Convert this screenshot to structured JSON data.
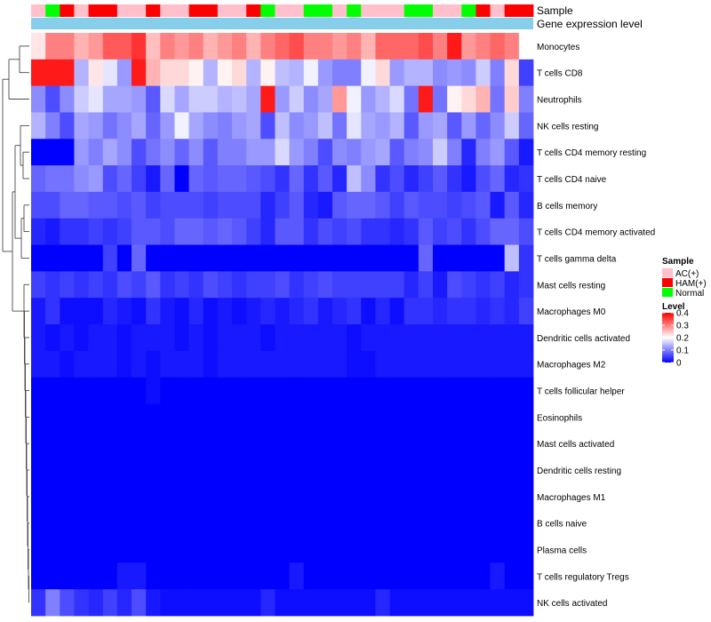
{
  "chart_data": {
    "type": "heatmap",
    "annotation_rows": [
      "Sample",
      "Gene expression level"
    ],
    "sample_annotation": [
      "AC(+)",
      "Normal",
      "HAM(+)",
      "AC(+)",
      "HAM(+)",
      "HAM(+)",
      "AC(+)",
      "AC(+)",
      "HAM(+)",
      "AC(+)",
      "AC(+)",
      "HAM(+)",
      "HAM(+)",
      "AC(+)",
      "AC(+)",
      "HAM(+)",
      "Normal",
      "AC(+)",
      "AC(+)",
      "Normal",
      "Normal",
      "AC(+)",
      "Normal",
      "AC(+)",
      "AC(+)",
      "AC(+)",
      "Normal",
      "Normal",
      "AC(+)",
      "AC(+)",
      "Normal",
      "HAM(+)",
      "AC(+)",
      "HAM(+)",
      "HAM(+)"
    ],
    "expression_annotation_color": "#87ceeb",
    "rows": [
      "Monocytes",
      "T cells CD8",
      "Neutrophils",
      "NK cells resting",
      "T cells CD4 memory resting",
      "T cells CD4 naive",
      "B cells memory",
      "T cells CD4 memory activated",
      "T cells gamma delta",
      "Mast cells resting",
      "Macrophages M0",
      "Dendritic cells activated",
      "Macrophages M2",
      "T cells follicular helper",
      "Eosinophils",
      "Mast cells activated",
      "Dendritic cells resting",
      "Macrophages M1",
      "B cells naive",
      "Plasma cells",
      "T cells regulatory  Tregs",
      "NK cells activated"
    ],
    "values": [
      [
        0.22,
        0.3,
        0.3,
        0.26,
        0.28,
        0.33,
        0.33,
        0.36,
        0.25,
        0.3,
        0.28,
        0.3,
        0.26,
        0.28,
        0.3,
        0.26,
        0.3,
        0.32,
        0.34,
        0.3,
        0.3,
        0.28,
        0.3,
        0.26,
        0.32,
        0.32,
        0.32,
        0.34,
        0.3,
        0.38,
        0.28,
        0.3,
        0.32,
        0.3,
        0.2
      ],
      [
        0.38,
        0.38,
        0.38,
        0.14,
        0.22,
        0.18,
        0.12,
        0.38,
        0.26,
        0.23,
        0.23,
        0.21,
        0.14,
        0.21,
        0.23,
        0.14,
        0.21,
        0.15,
        0.14,
        0.19,
        0.12,
        0.1,
        0.1,
        0.19,
        0.23,
        0.12,
        0.14,
        0.14,
        0.11,
        0.12,
        0.11,
        0.16,
        0.1,
        0.23,
        0.05
      ],
      [
        0.11,
        0.06,
        0.11,
        0.16,
        0.18,
        0.13,
        0.13,
        0.12,
        0.07,
        0.17,
        0.13,
        0.16,
        0.16,
        0.14,
        0.15,
        0.13,
        0.38,
        0.12,
        0.16,
        0.11,
        0.13,
        0.28,
        0.19,
        0.12,
        0.14,
        0.17,
        0.09,
        0.38,
        0.09,
        0.21,
        0.23,
        0.26,
        0.09,
        0.24,
        0.1
      ],
      [
        0.14,
        0.1,
        0.06,
        0.13,
        0.12,
        0.09,
        0.11,
        0.13,
        0.08,
        0.12,
        0.19,
        0.13,
        0.11,
        0.1,
        0.12,
        0.13,
        0.06,
        0.15,
        0.11,
        0.12,
        0.15,
        0.09,
        0.18,
        0.13,
        0.12,
        0.14,
        0.07,
        0.12,
        0.13,
        0.07,
        0.12,
        0.08,
        0.11,
        0.16,
        0.08
      ],
      [
        0.0,
        0.0,
        0.0,
        0.12,
        0.1,
        0.13,
        0.11,
        0.06,
        0.09,
        0.11,
        0.08,
        0.11,
        0.07,
        0.1,
        0.1,
        0.12,
        0.12,
        0.17,
        0.12,
        0.1,
        0.06,
        0.11,
        0.1,
        0.12,
        0.13,
        0.07,
        0.1,
        0.11,
        0.16,
        0.1,
        0.03,
        0.1,
        0.12,
        0.07,
        0.02
      ],
      [
        0.08,
        0.09,
        0.09,
        0.11,
        0.12,
        0.06,
        0.08,
        0.05,
        0.02,
        0.08,
        0.0,
        0.08,
        0.07,
        0.08,
        0.08,
        0.07,
        0.06,
        0.04,
        0.08,
        0.04,
        0.07,
        0.03,
        0.15,
        0.11,
        0.04,
        0.06,
        0.03,
        0.05,
        0.07,
        0.04,
        0.02,
        0.06,
        0.08,
        0.03,
        0.04
      ],
      [
        0.06,
        0.06,
        0.08,
        0.08,
        0.07,
        0.07,
        0.06,
        0.07,
        0.05,
        0.06,
        0.06,
        0.06,
        0.05,
        0.06,
        0.06,
        0.06,
        0.03,
        0.05,
        0.07,
        0.03,
        0.02,
        0.07,
        0.08,
        0.08,
        0.07,
        0.05,
        0.07,
        0.06,
        0.06,
        0.05,
        0.06,
        0.07,
        0.02,
        0.07,
        0.03
      ],
      [
        0.03,
        0.02,
        0.04,
        0.04,
        0.05,
        0.04,
        0.05,
        0.07,
        0.07,
        0.06,
        0.08,
        0.08,
        0.07,
        0.08,
        0.07,
        0.05,
        0.03,
        0.07,
        0.07,
        0.04,
        0.06,
        0.05,
        0.06,
        0.04,
        0.04,
        0.03,
        0.04,
        0.07,
        0.05,
        0.06,
        0.04,
        0.06,
        0.08,
        0.08,
        0.06
      ],
      [
        0.0,
        0.0,
        0.0,
        0.0,
        0.0,
        0.05,
        0.0,
        0.08,
        0.0,
        0.0,
        0.0,
        0.0,
        0.0,
        0.0,
        0.0,
        0.0,
        0.0,
        0.0,
        0.0,
        0.0,
        0.0,
        0.0,
        0.0,
        0.0,
        0.0,
        0.0,
        0.0,
        0.08,
        0.0,
        0.0,
        0.0,
        0.0,
        0.0,
        0.15,
        0.04
      ],
      [
        0.05,
        0.04,
        0.05,
        0.04,
        0.05,
        0.04,
        0.06,
        0.05,
        0.07,
        0.04,
        0.05,
        0.04,
        0.06,
        0.05,
        0.04,
        0.05,
        0.05,
        0.06,
        0.04,
        0.05,
        0.06,
        0.05,
        0.05,
        0.05,
        0.05,
        0.05,
        0.03,
        0.05,
        0.02,
        0.06,
        0.05,
        0.04,
        0.05,
        0.03,
        0.04
      ],
      [
        0.02,
        0.04,
        0.01,
        0.01,
        0.01,
        0.03,
        0.02,
        0.01,
        0.04,
        0.02,
        0.01,
        0.03,
        0.01,
        0.02,
        0.01,
        0.02,
        0.03,
        0.02,
        0.03,
        0.04,
        0.02,
        0.03,
        0.04,
        0.01,
        0.03,
        0.01,
        0.04,
        0.04,
        0.03,
        0.04,
        0.04,
        0.03,
        0.04,
        0.03,
        0.05
      ],
      [
        0.02,
        0.01,
        0.02,
        0.01,
        0.02,
        0.02,
        0.01,
        0.02,
        0.02,
        0.02,
        0.01,
        0.02,
        0.01,
        0.02,
        0.02,
        0.02,
        0.01,
        0.02,
        0.02,
        0.02,
        0.02,
        0.02,
        0.01,
        0.02,
        0.02,
        0.02,
        0.02,
        0.02,
        0.02,
        0.02,
        0.02,
        0.02,
        0.02,
        0.02,
        0.02
      ],
      [
        0.02,
        0.02,
        0.01,
        0.02,
        0.02,
        0.02,
        0.01,
        0.02,
        0.01,
        0.02,
        0.02,
        0.02,
        0.01,
        0.02,
        0.02,
        0.02,
        0.02,
        0.02,
        0.02,
        0.02,
        0.02,
        0.02,
        0.01,
        0.01,
        0.02,
        0.02,
        0.02,
        0.02,
        0.02,
        0.02,
        0.02,
        0.02,
        0.02,
        0.02,
        0.02
      ],
      [
        0.0,
        0.0,
        0.0,
        0.0,
        0.0,
        0.0,
        0.0,
        0.0,
        0.01,
        0.0,
        0.0,
        0.0,
        0.0,
        0.0,
        0.0,
        0.0,
        0.0,
        0.0,
        0.0,
        0.0,
        0.0,
        0.0,
        0.0,
        0.0,
        0.0,
        0.0,
        0.0,
        0.0,
        0.0,
        0.0,
        0.0,
        0.0,
        0.0,
        0.0,
        0.0
      ],
      [
        0.0,
        0.0,
        0.0,
        0.0,
        0.0,
        0.0,
        0.0,
        0.0,
        0.0,
        0.0,
        0.0,
        0.0,
        0.0,
        0.0,
        0.0,
        0.0,
        0.0,
        0.0,
        0.0,
        0.0,
        0.0,
        0.0,
        0.0,
        0.0,
        0.0,
        0.0,
        0.0,
        0.0,
        0.0,
        0.0,
        0.0,
        0.0,
        0.0,
        0.0,
        0.0
      ],
      [
        0.0,
        0.0,
        0.0,
        0.0,
        0.0,
        0.0,
        0.0,
        0.0,
        0.0,
        0.0,
        0.0,
        0.0,
        0.0,
        0.0,
        0.0,
        0.0,
        0.0,
        0.0,
        0.0,
        0.0,
        0.0,
        0.0,
        0.0,
        0.0,
        0.0,
        0.0,
        0.0,
        0.0,
        0.0,
        0.0,
        0.0,
        0.0,
        0.0,
        0.0,
        0.0
      ],
      [
        0.0,
        0.0,
        0.0,
        0.0,
        0.0,
        0.0,
        0.0,
        0.0,
        0.0,
        0.0,
        0.0,
        0.0,
        0.0,
        0.0,
        0.0,
        0.0,
        0.0,
        0.0,
        0.0,
        0.0,
        0.0,
        0.0,
        0.0,
        0.0,
        0.0,
        0.0,
        0.0,
        0.0,
        0.0,
        0.0,
        0.0,
        0.0,
        0.0,
        0.0,
        0.0
      ],
      [
        0.0,
        0.0,
        0.0,
        0.0,
        0.0,
        0.0,
        0.0,
        0.0,
        0.0,
        0.0,
        0.0,
        0.0,
        0.0,
        0.0,
        0.0,
        0.0,
        0.0,
        0.0,
        0.0,
        0.0,
        0.0,
        0.0,
        0.0,
        0.0,
        0.0,
        0.0,
        0.0,
        0.0,
        0.0,
        0.0,
        0.0,
        0.0,
        0.0,
        0.0,
        0.0
      ],
      [
        0.0,
        0.0,
        0.0,
        0.0,
        0.0,
        0.0,
        0.0,
        0.0,
        0.0,
        0.0,
        0.0,
        0.0,
        0.0,
        0.0,
        0.0,
        0.0,
        0.0,
        0.0,
        0.0,
        0.0,
        0.0,
        0.0,
        0.0,
        0.0,
        0.0,
        0.0,
        0.0,
        0.0,
        0.0,
        0.0,
        0.0,
        0.0,
        0.0,
        0.0,
        0.0
      ],
      [
        0.0,
        0.0,
        0.0,
        0.0,
        0.0,
        0.0,
        0.0,
        0.0,
        0.0,
        0.0,
        0.0,
        0.0,
        0.0,
        0.0,
        0.0,
        0.0,
        0.0,
        0.0,
        0.0,
        0.0,
        0.0,
        0.0,
        0.0,
        0.0,
        0.0,
        0.0,
        0.0,
        0.0,
        0.0,
        0.0,
        0.0,
        0.0,
        0.0,
        0.0,
        0.0
      ],
      [
        0.0,
        0.0,
        0.0,
        0.0,
        0.0,
        0.0,
        0.02,
        0.02,
        0.0,
        0.0,
        0.0,
        0.0,
        0.0,
        0.0,
        0.0,
        0.0,
        0.0,
        0.0,
        0.02,
        0.0,
        0.0,
        0.0,
        0.0,
        0.0,
        0.0,
        0.0,
        0.0,
        0.0,
        0.0,
        0.0,
        0.0,
        0.0,
        0.02,
        0.0,
        0.0
      ],
      [
        0.04,
        0.1,
        0.06,
        0.04,
        0.03,
        0.05,
        0.03,
        0.06,
        0.02,
        0.01,
        0.01,
        0.01,
        0.01,
        0.01,
        0.01,
        0.01,
        0.03,
        0.01,
        0.01,
        0.01,
        0.01,
        0.01,
        0.01,
        0.01,
        0.03,
        0.01,
        0.01,
        0.01,
        0.01,
        0.01,
        0.01,
        0.01,
        0.01,
        0.01,
        0.01
      ]
    ],
    "scale_min": 0.0,
    "scale_max": 0.4,
    "color_stops": [
      {
        "value": 0.0,
        "color": "#0000ff"
      },
      {
        "value": 0.2,
        "color": "#ffffff"
      },
      {
        "value": 0.4,
        "color": "#ff0000"
      }
    ]
  },
  "legend": {
    "sample_title": "Sample",
    "sample_items": [
      {
        "label": "AC(+)",
        "color": "#ffc0cb"
      },
      {
        "label": "HAM(+)",
        "color": "#ff0000"
      },
      {
        "label": "Normal",
        "color": "#00ff00"
      }
    ],
    "level_title": "Level",
    "level_ticks": [
      "0.4",
      "0.3",
      "0.2",
      "0.1",
      "0"
    ],
    "level_tick_values": [
      0.4,
      0.3,
      0.2,
      0.1,
      0.0
    ]
  }
}
